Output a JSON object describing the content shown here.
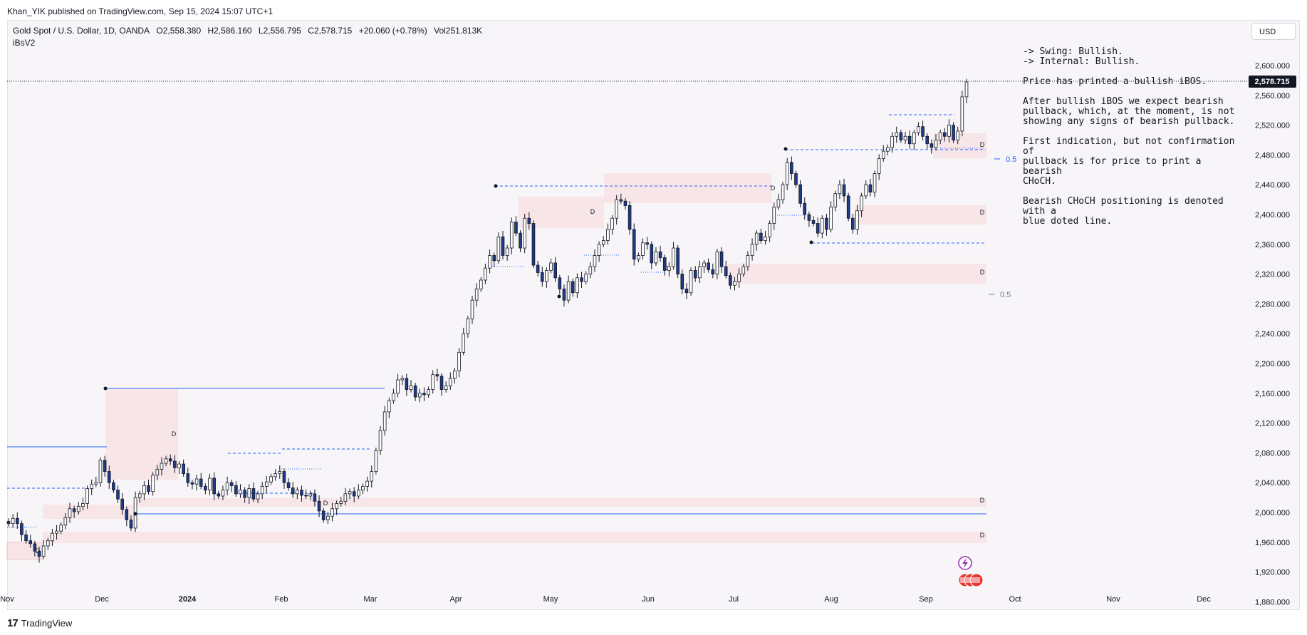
{
  "header": {
    "publisher": "Khan_YIK published on TradingView.com, Sep 15, 2024 15:07 UTC+1",
    "symbol": "Gold Spot / U.S. Dollar, 1D, OANDA",
    "open": "O2,558.380",
    "high": "H2,586.160",
    "low": "L2,556.795",
    "close": "C2,578.715",
    "change": "+20.060 (+0.78%)",
    "volume": "Vol251.813K",
    "indicator": "iBsV2",
    "currency": "USD"
  },
  "notes": {
    "line1": "-> Swing: Bullish.",
    "line2": "-> Internal: Bullish.",
    "line3": "Price has printed a bullish iBOS.",
    "line4": "After bullish iBOS we expect bearish\npullback, which, at the moment, is not\nshowing any signs of bearish pullback.",
    "line5": "First indication, but not confirmation of\npullback is for price to print a bearish\nCHoCH.",
    "line6": "Bearish CHoCH positioning is denoted with a\nblue doted line."
  },
  "footer": {
    "brand": "TradingView",
    "logo": "tv-logo-icon"
  },
  "colors": {
    "bull": "#ffffff",
    "bear": "#1e3a8a",
    "wick": "#131722",
    "zone": "#f8d7da",
    "bos_line": "#2962ff",
    "price_tag": "#131722",
    "background": "#f7f5f7"
  },
  "zone_labels": {
    "demand": "D",
    "fib": "0.5"
  },
  "icons": [
    "lightning-icon",
    "us-flag-icon"
  ],
  "chart_data": {
    "type": "candlestick",
    "title": "Gold Spot / U.S. Dollar, 1D, OANDA",
    "x_ticks": [
      "Nov",
      "Dec",
      "2024",
      "Feb",
      "Mar",
      "Apr",
      "May",
      "Jun",
      "Jul",
      "Aug",
      "Sep",
      "Oct",
      "Nov",
      "Dec"
    ],
    "y_ticks": [
      "1,880.000",
      "1,920.000",
      "1,960.000",
      "2,000.000",
      "2,040.000",
      "2,080.000",
      "2,120.000",
      "2,160.000",
      "2,200.000",
      "2,240.000",
      "2,280.000",
      "2,320.000",
      "2,360.000",
      "2,400.000",
      "2,440.000",
      "2,480.000",
      "2,520.000",
      "2,560.000",
      "2,600.000"
    ],
    "ylim": [
      1860,
      2620
    ],
    "last_price": 2578.715,
    "last_price_label": "2,578.715",
    "closes": [
      1985,
      1992,
      1985,
      1970,
      1962,
      1958,
      1948,
      1941,
      1955,
      1962,
      1972,
      1975,
      1983,
      1993,
      2005,
      2001,
      2008,
      2012,
      2032,
      2038,
      2040,
      2070,
      2055,
      2040,
      2030,
      2018,
      2004,
      1990,
      1979,
      2020,
      2025,
      2036,
      2028,
      2050,
      2058,
      2066,
      2072,
      2069,
      2060,
      2065,
      2052,
      2040,
      2038,
      2045,
      2035,
      2030,
      2046,
      2025,
      2022,
      2030,
      2040,
      2036,
      2025,
      2030,
      2020,
      2032,
      2018,
      2025,
      2035,
      2041,
      2048,
      2052,
      2055,
      2040,
      2033,
      2025,
      2030,
      2023,
      2022,
      2025,
      2015,
      2002,
      1990,
      1995,
      2005,
      2012,
      2015,
      2025,
      2028,
      2022,
      2030,
      2035,
      2042,
      2055,
      2083,
      2110,
      2135,
      2150,
      2160,
      2178,
      2180,
      2165,
      2170,
      2155,
      2160,
      2158,
      2165,
      2185,
      2183,
      2165,
      2170,
      2180,
      2190,
      2215,
      2240,
      2260,
      2285,
      2300,
      2312,
      2328,
      2345,
      2338,
      2370,
      2345,
      2355,
      2390,
      2375,
      2355,
      2395,
      2388,
      2332,
      2322,
      2310,
      2325,
      2335,
      2315,
      2300,
      2285,
      2310,
      2295,
      2315,
      2310,
      2320,
      2330,
      2345,
      2360,
      2365,
      2380,
      2395,
      2420,
      2418,
      2412,
      2380,
      2340,
      2345,
      2362,
      2360,
      2335,
      2350,
      2342,
      2325,
      2330,
      2355,
      2320,
      2300,
      2295,
      2325,
      2315,
      2330,
      2335,
      2326,
      2320,
      2350,
      2330,
      2318,
      2305,
      2310,
      2320,
      2330,
      2345,
      2360,
      2375,
      2365,
      2370,
      2388,
      2410,
      2420,
      2440,
      2470,
      2455,
      2440,
      2415,
      2400,
      2392,
      2388,
      2375,
      2395,
      2380,
      2410,
      2428,
      2440,
      2425,
      2395,
      2380,
      2405,
      2425,
      2440,
      2430,
      2455,
      2475,
      2485,
      2490,
      2505,
      2510,
      2500,
      2505,
      2495,
      2510,
      2518,
      2505,
      2495,
      2490,
      2500,
      2510,
      2505,
      2520,
      2500,
      2512,
      2558,
      2578
    ]
  }
}
